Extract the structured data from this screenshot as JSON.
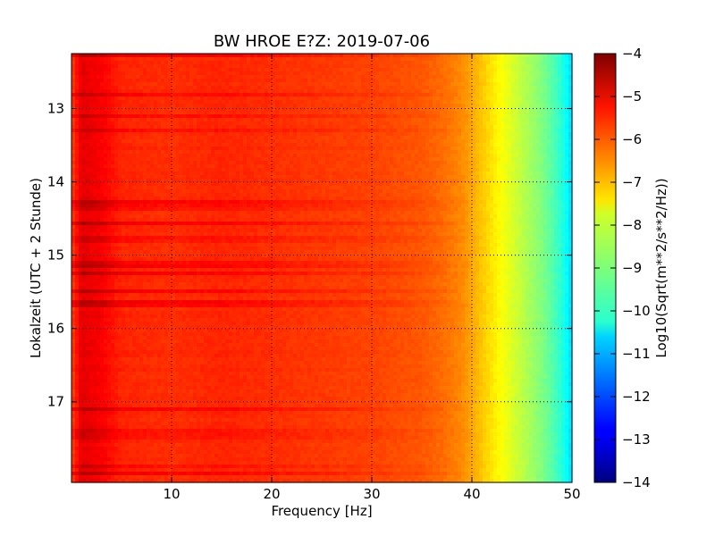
{
  "chart_data": {
    "type": "heatmap",
    "title": "BW HROE E?Z: 2019-07-06",
    "xlabel": "Frequency [Hz]",
    "ylabel": "Lokalzeit (UTC + 2 Stunde)",
    "colorbar_label": "Log10(Sqrt(m**2/s**2/Hz))",
    "colormap": "jet",
    "xlim": [
      0,
      50
    ],
    "ylim": [
      12.25,
      18.1
    ],
    "y_inverted": true,
    "x_ticks": [
      10,
      20,
      30,
      40,
      50
    ],
    "y_ticks": [
      13,
      14,
      15,
      16,
      17
    ],
    "colorbar_range": [
      -14,
      -4
    ],
    "colorbar_ticks": [
      -4,
      -5,
      -6,
      -7,
      -8,
      -9,
      -10,
      -11,
      -12,
      -13,
      -14
    ],
    "grid": true,
    "spectrum_profile": {
      "frequency": [
        0,
        1,
        3,
        5,
        10,
        15,
        20,
        25,
        30,
        35,
        37,
        39,
        40,
        41,
        42,
        43,
        44,
        45,
        46,
        47,
        48,
        49,
        50
      ],
      "log10_amplitude": [
        -5.9,
        -5.0,
        -5.2,
        -5.6,
        -5.7,
        -5.6,
        -5.7,
        -5.8,
        -5.9,
        -6.1,
        -6.3,
        -6.6,
        -6.9,
        -7.2,
        -7.5,
        -7.8,
        -8.1,
        -8.4,
        -8.7,
        -9.0,
        -9.4,
        -9.9,
        -10.6
      ]
    }
  }
}
